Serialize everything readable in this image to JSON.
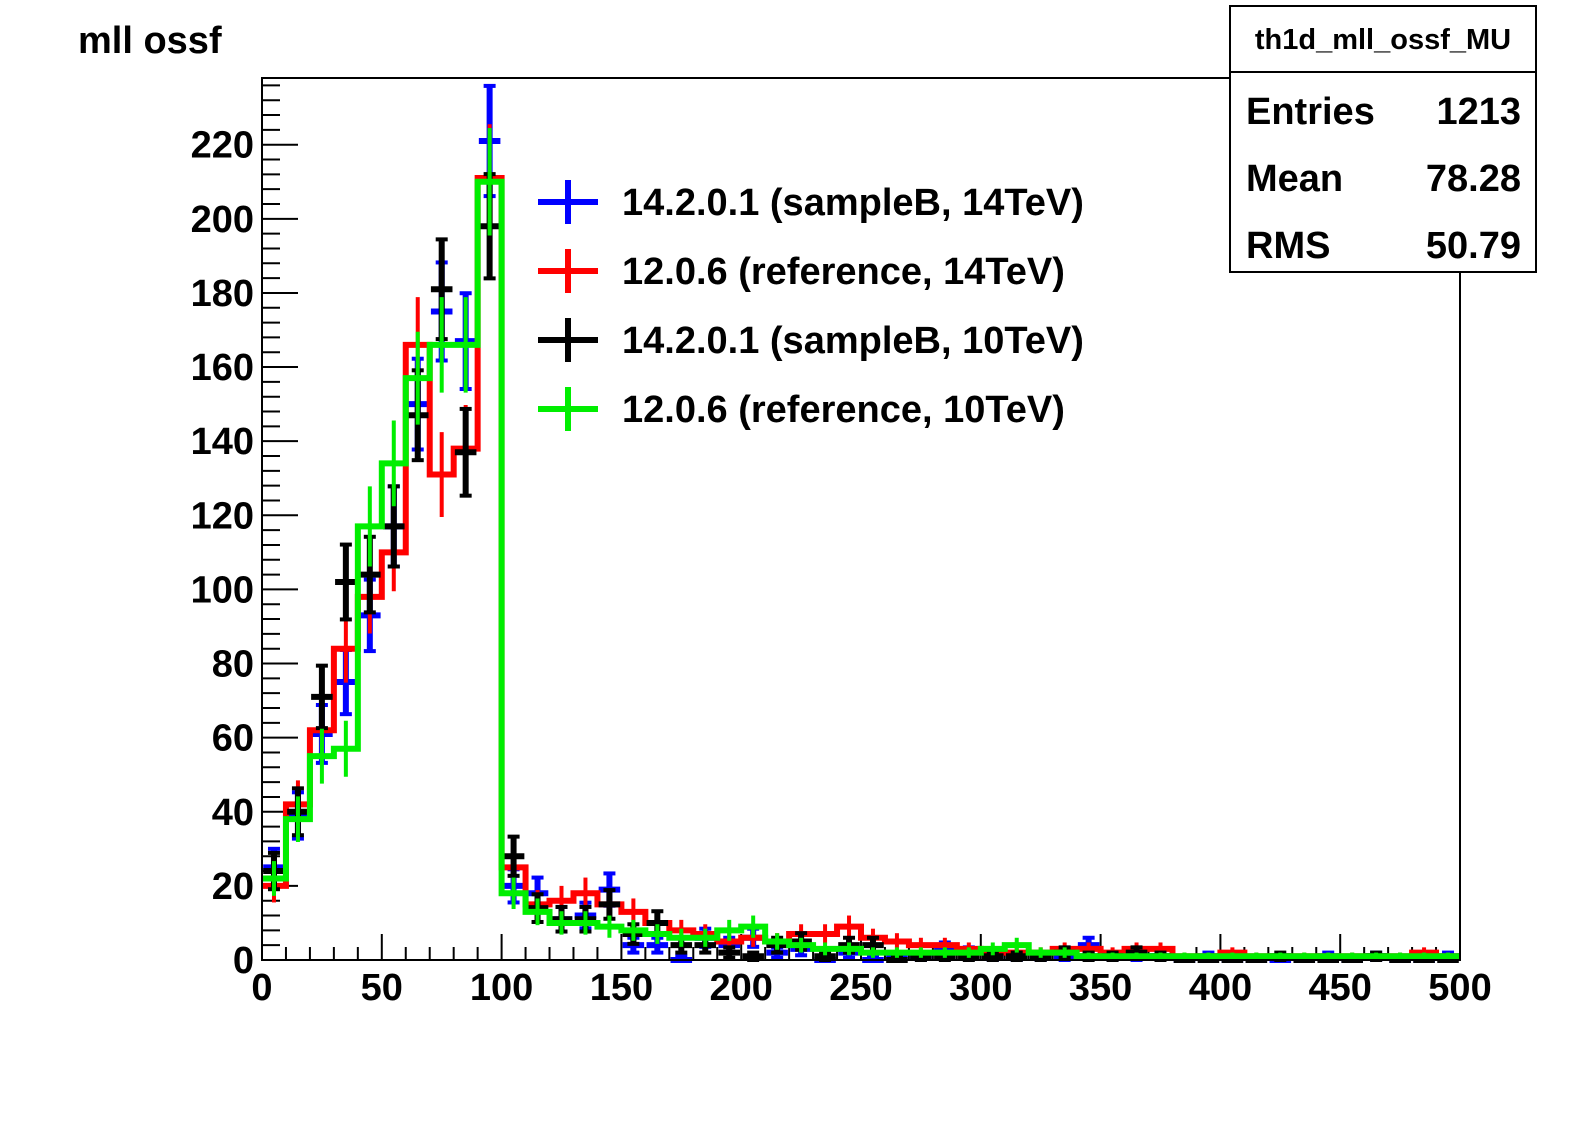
{
  "chart_data": {
    "type": "histogram",
    "title": "mll ossf",
    "xlabel": "",
    "ylabel": "",
    "xlim": [
      0,
      500
    ],
    "ylim": [
      0,
      238
    ],
    "bin_width": 10,
    "x_ticks": [
      0,
      50,
      100,
      150,
      200,
      250,
      300,
      350,
      400,
      450,
      500
    ],
    "y_ticks": [
      0,
      20,
      40,
      60,
      80,
      100,
      120,
      140,
      160,
      180,
      200,
      220
    ],
    "grid": false,
    "legend_position": "top-center",
    "stats_box": {
      "name": "th1d_mll_ossf_MU",
      "rows": [
        {
          "label": "Entries",
          "value": "1213"
        },
        {
          "label": "Mean",
          "value": "78.28"
        },
        {
          "label": "RMS",
          "value": "50.79"
        }
      ]
    },
    "bin_centers": [
      5,
      15,
      25,
      35,
      45,
      55,
      65,
      75,
      85,
      95,
      105,
      115,
      125,
      135,
      145,
      155,
      165,
      175,
      185,
      195,
      205,
      215,
      225,
      235,
      245,
      255,
      265,
      275,
      285,
      295,
      305,
      315,
      325,
      335,
      345,
      355,
      365,
      375,
      385,
      395,
      405,
      415,
      425,
      435,
      445,
      455,
      465,
      475,
      485,
      495
    ],
    "series": [
      {
        "name": "14.2.0.1 (sampleB, 14TeV)",
        "color": "#0000ff",
        "style": "errorbars",
        "values": [
          25,
          39,
          61,
          75,
          93,
          117,
          150,
          175,
          167,
          221,
          20,
          18,
          11,
          12,
          19,
          4,
          4,
          0,
          6,
          4,
          6,
          2,
          3,
          0,
          2,
          0,
          1,
          1,
          3,
          2,
          1,
          1,
          1,
          1,
          4,
          1,
          1,
          1,
          0,
          1,
          0,
          0,
          0,
          0,
          1,
          0,
          1,
          0,
          0,
          1
        ]
      },
      {
        "name": "12.0.6 (reference, 14TeV)",
        "color": "#ff0000",
        "style": "step",
        "values": [
          20,
          42,
          62,
          84,
          98,
          110,
          166,
          131,
          138,
          211,
          25,
          15,
          16,
          18,
          15,
          13,
          10,
          8,
          7,
          5,
          6,
          5,
          7,
          7,
          9,
          6,
          5,
          4,
          4,
          3,
          2,
          2,
          2,
          3,
          3,
          2,
          3,
          3,
          1,
          1,
          2,
          1,
          1,
          1,
          1,
          1,
          1,
          1,
          2,
          1
        ]
      },
      {
        "name": "14.2.0.1 (sampleB, 10TeV)",
        "color": "#000000",
        "style": "errorbars",
        "values": [
          24,
          40,
          71,
          102,
          104,
          117,
          147,
          181,
          137,
          198,
          28,
          14,
          11,
          11,
          15,
          7,
          10,
          4,
          4,
          2,
          1,
          4,
          5,
          1,
          4,
          4,
          0,
          1,
          1,
          1,
          1,
          1,
          1,
          2,
          1,
          1,
          2,
          1,
          0,
          0,
          0,
          0,
          1,
          0,
          0,
          0,
          1,
          0,
          0,
          0
        ]
      },
      {
        "name": "12.0.6 (reference, 10TeV)",
        "color": "#00ee00",
        "style": "step",
        "values": [
          22,
          38,
          55,
          57,
          117,
          134,
          157,
          166,
          166,
          210,
          18,
          13,
          10,
          10,
          9,
          8,
          7,
          6,
          6,
          8,
          9,
          5,
          4,
          3,
          3,
          2,
          2,
          2,
          2,
          2,
          3,
          4,
          2,
          2,
          1,
          1,
          1,
          1,
          1,
          1,
          1,
          1,
          1,
          1,
          1,
          1,
          1,
          1,
          1,
          1
        ]
      }
    ]
  }
}
